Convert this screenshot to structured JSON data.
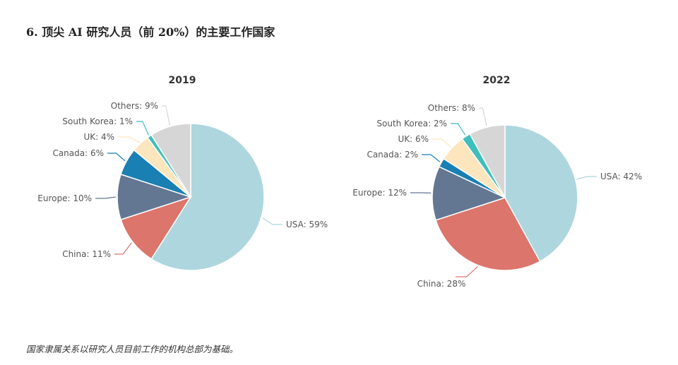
{
  "title": "6. 顶尖 AI 研究人员（前 20%）的主要工作国家",
  "footnote": "国家隶属关系以研究人员目前工作的机构总部为基础。",
  "chart_data": [
    {
      "type": "pie",
      "title": "2019",
      "categories": [
        "USA",
        "China",
        "Europe",
        "Canada",
        "UK",
        "South Korea",
        "Others"
      ],
      "values": [
        59,
        11,
        10,
        6,
        4,
        1,
        9
      ],
      "labels": [
        "USA: 59%",
        "China: 11%",
        "Europe: 10%",
        "Canada: 6%",
        "UK: 4%",
        "South Korea: 1%",
        "Others: 9%"
      ],
      "colors": [
        "#aed6df",
        "#dc756b",
        "#637793",
        "#1a7fb2",
        "#fde6bd",
        "#3fbfbb",
        "#d6d6d6"
      ]
    },
    {
      "type": "pie",
      "title": "2022",
      "categories": [
        "USA",
        "China",
        "Europe",
        "Canada",
        "UK",
        "South Korea",
        "Others"
      ],
      "values": [
        42,
        28,
        12,
        2,
        6,
        2,
        8
      ],
      "labels": [
        "USA: 42%",
        "China: 28%",
        "Europe: 12%",
        "Canada: 2%",
        "UK: 6%",
        "South Korea: 2%",
        "Others: 8%"
      ],
      "colors": [
        "#aed6df",
        "#dc756b",
        "#637793",
        "#1a7fb2",
        "#fde6bd",
        "#3fbfbb",
        "#d6d6d6"
      ]
    }
  ]
}
